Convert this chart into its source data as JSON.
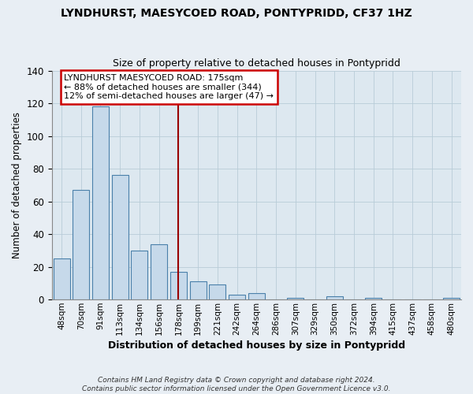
{
  "title": "LYNDHURST, MAESYCOED ROAD, PONTYPRIDD, CF37 1HZ",
  "subtitle": "Size of property relative to detached houses in Pontypridd",
  "xlabel": "Distribution of detached houses by size in Pontypridd",
  "ylabel": "Number of detached properties",
  "bar_labels": [
    "48sqm",
    "70sqm",
    "91sqm",
    "113sqm",
    "134sqm",
    "156sqm",
    "178sqm",
    "199sqm",
    "221sqm",
    "242sqm",
    "264sqm",
    "286sqm",
    "307sqm",
    "329sqm",
    "350sqm",
    "372sqm",
    "394sqm",
    "415sqm",
    "437sqm",
    "458sqm",
    "480sqm"
  ],
  "bar_values": [
    25,
    67,
    118,
    76,
    30,
    34,
    17,
    11,
    9,
    3,
    4,
    0,
    1,
    0,
    2,
    0,
    1,
    0,
    0,
    0,
    1
  ],
  "bar_color": "#c6d9ea",
  "bar_edge_color": "#4a80aa",
  "reference_line_x": 6,
  "reference_line_color": "#990000",
  "ylim": [
    0,
    140
  ],
  "yticks": [
    0,
    20,
    40,
    60,
    80,
    100,
    120,
    140
  ],
  "annotation_title": "LYNDHURST MAESYCOED ROAD: 175sqm",
  "annotation_line1": "← 88% of detached houses are smaller (344)",
  "annotation_line2": "12% of semi-detached houses are larger (47) →",
  "footer_line1": "Contains HM Land Registry data © Crown copyright and database right 2024.",
  "footer_line2": "Contains public sector information licensed under the Open Government Licence v3.0.",
  "background_color": "#e8eef4",
  "plot_bg_color": "#dde8f0"
}
